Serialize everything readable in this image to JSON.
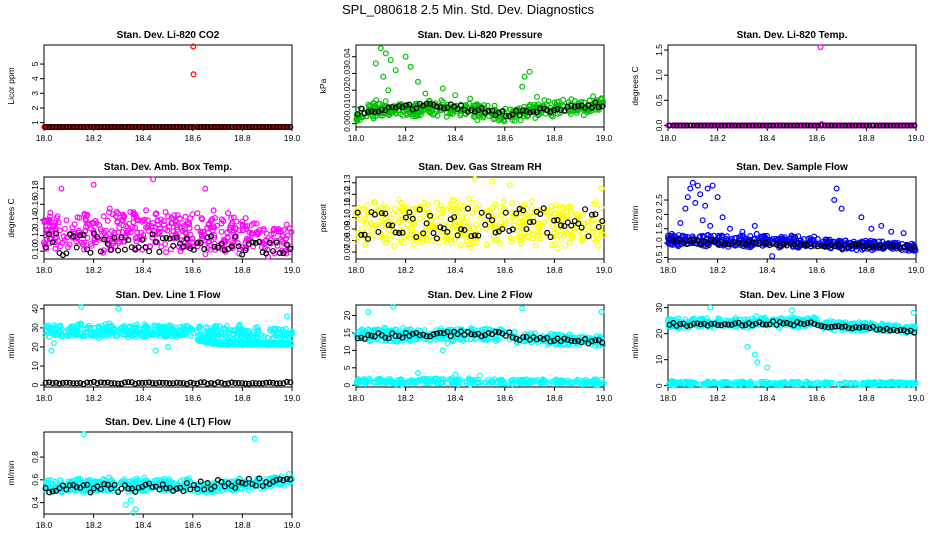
{
  "main_title": "SPL_080618  2.5 Min. Std. Dev. Diagnostics",
  "colors": {
    "co2": "#ff0000",
    "pressure": "#00c000",
    "temp": "#ff00ff",
    "amb": "#ff00ff",
    "rh": "#ffff00",
    "sample": "#0000ff",
    "line": "#00ffff",
    "overlay": "#000000"
  },
  "chart_data": [
    {
      "type": "scatter",
      "title": "Stan. Dev. Li-820 CO2",
      "xlabel": "",
      "ylabel": "Licor ppm",
      "xlim": [
        18.0,
        19.0
      ],
      "ylim": [
        0.7,
        6.3
      ],
      "xticks": [
        18.0,
        18.2,
        18.4,
        18.6,
        18.8,
        19.0
      ],
      "xtick_labels": [
        "18.0",
        "18.2",
        "18.4",
        "18.6",
        "18.8",
        "19.0"
      ],
      "yticks": [
        1,
        2,
        3,
        4,
        5
      ],
      "ytick_labels": [
        "1",
        "2",
        "3",
        "4",
        "5"
      ],
      "color": "#ff0000",
      "profile": [
        [
          18.0,
          0.35,
          0.5,
          0.03
        ],
        [
          18.6,
          0.36,
          0.5,
          0.03
        ],
        [
          19.0,
          0.36,
          0.5,
          0.03
        ]
      ],
      "gap": [
        18.605,
        18.618
      ],
      "overlay_profile": [
        [
          18.0,
          0.36,
          0.5,
          0.02
        ],
        [
          19.0,
          0.36,
          0.5,
          0.02
        ]
      ],
      "outliers": [
        [
          18.602,
          6.2
        ],
        [
          18.603,
          4.3
        ]
      ]
    },
    {
      "type": "scatter",
      "title": "Stan. Dev. Li-820 Pressure",
      "xlabel": "",
      "ylabel": "kPa",
      "xlim": [
        18.0,
        19.0
      ],
      "ylim": [
        -0.002,
        0.047
      ],
      "xticks": [
        18.0,
        18.2,
        18.4,
        18.6,
        18.8,
        19.0
      ],
      "xtick_labels": [
        "18.0",
        "18.2",
        "18.4",
        "18.6",
        "18.8",
        "19.0"
      ],
      "yticks": [
        0.0,
        0.01,
        0.02,
        0.03,
        0.04
      ],
      "ytick_labels": [
        "0.00",
        "0.01",
        "0.02",
        "0.03",
        "0.04"
      ],
      "color": "#00c000",
      "profile": [
        [
          18.0,
          0.004,
          0.004,
          0.005
        ],
        [
          18.05,
          0.008,
          0.004,
          0.006
        ],
        [
          18.3,
          0.009,
          0.004,
          0.006
        ],
        [
          18.55,
          0.007,
          0.004,
          0.006
        ],
        [
          18.6,
          0.004,
          0.004,
          0.006
        ],
        [
          18.7,
          0.008,
          0.004,
          0.006
        ],
        [
          19.0,
          0.011,
          0.004,
          0.006
        ]
      ],
      "gap": [
        18.605,
        18.618
      ],
      "overlay_profile": [
        [
          18.0,
          0.007,
          0.003,
          0.002
        ],
        [
          18.3,
          0.011,
          0.003,
          0.002
        ],
        [
          18.6,
          0.006,
          0.003,
          0.002
        ],
        [
          19.0,
          0.011,
          0.003,
          0.002
        ]
      ],
      "outliers": [
        [
          18.08,
          0.036
        ],
        [
          18.1,
          0.045
        ],
        [
          18.12,
          0.042
        ],
        [
          18.14,
          0.038
        ],
        [
          18.11,
          0.028
        ],
        [
          18.16,
          0.032
        ],
        [
          18.2,
          0.04
        ],
        [
          18.22,
          0.034
        ],
        [
          18.13,
          0.02
        ],
        [
          18.25,
          0.025
        ],
        [
          18.28,
          0.018
        ],
        [
          18.35,
          0.021
        ],
        [
          18.4,
          0.017
        ],
        [
          18.46,
          0.015
        ],
        [
          18.68,
          0.028
        ],
        [
          18.7,
          0.031
        ],
        [
          18.67,
          0.022
        ],
        [
          18.73,
          0.016
        ],
        [
          18.76,
          0.014
        ]
      ]
    },
    {
      "type": "scatter",
      "title": "Stan. Dev. Li-820 Temp.",
      "xlabel": "",
      "ylabel": "degrees C",
      "xlim": [
        18.0,
        19.0
      ],
      "ylim": [
        -0.03,
        1.6
      ],
      "xticks": [
        18.0,
        18.2,
        18.4,
        18.6,
        18.8,
        19.0
      ],
      "xtick_labels": [
        "18.0",
        "18.2",
        "18.4",
        "18.6",
        "18.8",
        "19.0"
      ],
      "yticks": [
        0.0,
        0.5,
        1.0,
        1.5
      ],
      "ytick_labels": [
        "0.0",
        "0.5",
        "1.0",
        "1.5"
      ],
      "color": "#ff00ff",
      "profile": [
        [
          18.0,
          0.0,
          0.0,
          0.0
        ],
        [
          19.0,
          0.0,
          0.0,
          0.0
        ]
      ],
      "gap": [
        18.605,
        18.618
      ],
      "overlay_profile": [
        [
          18.0,
          0.0,
          0.0,
          0.0
        ],
        [
          19.0,
          0.0,
          0.0,
          0.0
        ]
      ],
      "outliers": [
        [
          18.615,
          1.56
        ],
        [
          18.62,
          0.03
        ]
      ]
    },
    {
      "type": "scatter",
      "title": "Stan. Dev. Amb. Box Temp.",
      "xlabel": "",
      "ylabel": "degrees C",
      "xlim": [
        18.0,
        19.0
      ],
      "ylim": [
        0.09,
        0.195
      ],
      "xticks": [
        18.0,
        18.2,
        18.4,
        18.6,
        18.8,
        19.0
      ],
      "xtick_labels": [
        "18.0",
        "18.2",
        "18.4",
        "18.6",
        "18.8",
        "19.0"
      ],
      "yticks": [
        0.1,
        0.12,
        0.14,
        0.16,
        0.18
      ],
      "ytick_labels": [
        "0.10",
        "0.12",
        "0.14",
        "0.16",
        "0.18"
      ],
      "color": "#ff00ff",
      "profile": [
        [
          18.0,
          0.125,
          0.045,
          0.012
        ],
        [
          18.6,
          0.125,
          0.045,
          0.012
        ],
        [
          18.8,
          0.12,
          0.04,
          0.01
        ],
        [
          19.0,
          0.115,
          0.035,
          0.01
        ]
      ],
      "gap": [
        18.605,
        18.618
      ],
      "overlay_profile": [
        [
          18.0,
          0.11,
          0.03,
          0.005
        ],
        [
          19.0,
          0.108,
          0.02,
          0.005
        ]
      ],
      "outliers": [
        [
          18.2,
          0.185
        ],
        [
          18.44,
          0.192
        ],
        [
          18.65,
          0.18
        ],
        [
          18.07,
          0.18
        ]
      ]
    },
    {
      "type": "scatter",
      "title": "Stan. Dev. Gas Stream RH",
      "xlabel": "",
      "ylabel": "percent",
      "xlim": [
        18.0,
        19.0
      ],
      "ylim": [
        0.064,
        0.135
      ],
      "xticks": [
        18.0,
        18.2,
        18.4,
        18.6,
        18.8,
        19.0
      ],
      "xtick_labels": [
        "18.0",
        "18.2",
        "18.4",
        "18.6",
        "18.8",
        "19.0"
      ],
      "yticks": [
        0.07,
        0.08,
        0.09,
        0.1,
        0.11,
        0.12,
        0.13
      ],
      "ytick_labels": [
        "0.07",
        "0.08",
        "0.09",
        "0.10",
        "0.11",
        "0.12",
        "0.13"
      ],
      "color": "#ffff00",
      "profile": [
        [
          18.0,
          0.095,
          0.035,
          0.008
        ],
        [
          19.0,
          0.095,
          0.035,
          0.008
        ]
      ],
      "gap": [
        18.605,
        18.618
      ],
      "overlay_profile": [
        [
          18.0,
          0.095,
          0.025,
          0.006
        ],
        [
          19.0,
          0.095,
          0.025,
          0.006
        ]
      ],
      "outliers": [
        [
          18.48,
          0.133
        ],
        [
          18.55,
          0.131
        ],
        [
          18.62,
          0.128
        ],
        [
          18.99,
          0.125
        ]
      ]
    },
    {
      "type": "scatter",
      "title": "Stan. Dev. Sample Flow",
      "xlabel": "",
      "ylabel": "ml/min",
      "xlim": [
        18.0,
        19.0
      ],
      "ylim": [
        0.45,
        3.3
      ],
      "xticks": [
        18.0,
        18.2,
        18.4,
        18.6,
        18.8,
        19.0
      ],
      "xtick_labels": [
        "18.0",
        "18.2",
        "18.4",
        "18.6",
        "18.8",
        "19.0"
      ],
      "yticks": [
        0.5,
        1.0,
        1.5,
        2.0,
        2.5
      ],
      "ytick_labels": [
        "0.5",
        "1.0",
        "1.5",
        "2.0",
        "2.5"
      ],
      "color": "#0000ff",
      "profile": [
        [
          18.0,
          1.1,
          0.35,
          0.1
        ],
        [
          18.6,
          1.05,
          0.35,
          0.1
        ],
        [
          18.62,
          1.0,
          0.3,
          0.1
        ],
        [
          19.0,
          0.85,
          0.25,
          0.08
        ]
      ],
      "gap": [
        18.605,
        18.618
      ],
      "overlay_profile": [
        [
          18.0,
          1.05,
          0.15,
          0.05
        ],
        [
          19.0,
          0.85,
          0.12,
          0.05
        ]
      ],
      "outliers": [
        [
          18.07,
          2.2
        ],
        [
          18.08,
          2.6
        ],
        [
          18.09,
          2.9
        ],
        [
          18.1,
          3.1
        ],
        [
          18.12,
          3.0
        ],
        [
          18.13,
          2.7
        ],
        [
          18.15,
          2.3
        ],
        [
          18.16,
          2.9
        ],
        [
          18.18,
          3.0
        ],
        [
          18.2,
          2.6
        ],
        [
          18.11,
          2.4
        ],
        [
          18.14,
          1.8
        ],
        [
          18.17,
          1.6
        ],
        [
          18.22,
          1.9
        ],
        [
          18.05,
          1.7
        ],
        [
          18.25,
          1.5
        ],
        [
          18.3,
          1.4
        ],
        [
          18.35,
          1.6
        ],
        [
          18.67,
          2.5
        ],
        [
          18.68,
          2.9
        ],
        [
          18.7,
          2.2
        ],
        [
          18.78,
          1.9
        ],
        [
          18.82,
          1.5
        ],
        [
          18.86,
          1.6
        ],
        [
          18.9,
          1.4
        ],
        [
          18.95,
          1.35
        ],
        [
          18.42,
          0.55
        ]
      ]
    },
    {
      "type": "scatter",
      "title": "Stan. Dev. Line 1 Flow",
      "xlabel": "",
      "ylabel": "ml/min",
      "xlim": [
        18.0,
        19.0
      ],
      "ylim": [
        -1,
        42
      ],
      "xticks": [
        18.0,
        18.2,
        18.4,
        18.6,
        18.8,
        19.0
      ],
      "xtick_labels": [
        "18.0",
        "18.2",
        "18.4",
        "18.6",
        "18.8",
        "19.0"
      ],
      "yticks": [
        0,
        10,
        20,
        30,
        40
      ],
      "ytick_labels": [
        "0",
        "10",
        "20",
        "30",
        "40"
      ],
      "color": "#00ffff",
      "profile": [
        [
          18.0,
          28.5,
          6.0,
          1.5
        ],
        [
          18.6,
          28.5,
          6.0,
          1.5
        ],
        [
          18.62,
          28,
          8,
          1.5
        ],
        [
          19.0,
          27,
          6,
          1.5
        ]
      ],
      "gap": [
        18.605,
        18.618
      ],
      "extra_band": [
        [
          18.62,
          24,
          0,
          1.2
        ],
        [
          18.7,
          22,
          0,
          1.2
        ],
        [
          19.0,
          21.5,
          0,
          1.2
        ]
      ],
      "overlay_profile": [
        [
          18.0,
          1.2,
          0.8,
          0.4
        ],
        [
          19.0,
          1.0,
          0.8,
          0.4
        ]
      ],
      "outliers": [
        [
          18.03,
          18
        ],
        [
          18.04,
          22
        ],
        [
          18.15,
          41
        ],
        [
          18.45,
          18
        ],
        [
          18.5,
          20
        ],
        [
          18.98,
          36
        ],
        [
          18.3,
          40
        ]
      ]
    },
    {
      "type": "scatter",
      "title": "Stan. Dev. Line 2 Flow",
      "xlabel": "",
      "ylabel": "ml/min",
      "xlim": [
        18.0,
        19.0
      ],
      "ylim": [
        -0.5,
        23
      ],
      "xticks": [
        18.0,
        18.2,
        18.4,
        18.6,
        18.8,
        19.0
      ],
      "xtick_labels": [
        "18.0",
        "18.2",
        "18.4",
        "18.6",
        "18.8",
        "19.0"
      ],
      "yticks": [
        0,
        5,
        10,
        15,
        20
      ],
      "ytick_labels": [
        "0",
        "5",
        "10",
        "15",
        "20"
      ],
      "color": "#00ffff",
      "profile": [
        [
          18.0,
          14.5,
          3.5,
          0.8
        ],
        [
          18.6,
          14.5,
          3.5,
          0.8
        ],
        [
          18.65,
          13.5,
          3.0,
          0.8
        ],
        [
          19.0,
          12.5,
          2.5,
          0.8
        ]
      ],
      "gap": [
        18.605,
        18.618
      ],
      "extra_band": [
        [
          18.0,
          1.2,
          1.5,
          0.5
        ],
        [
          19.0,
          1.0,
          1.2,
          0.5
        ]
      ],
      "overlay_profile": [
        [
          18.0,
          14,
          1.5,
          0.5
        ],
        [
          18.6,
          15,
          1.5,
          0.5
        ],
        [
          18.65,
          13.5,
          1.2,
          0.5
        ],
        [
          19.0,
          12.5,
          1.0,
          0.5
        ]
      ],
      "outliers": [
        [
          18.05,
          21
        ],
        [
          18.15,
          22.5
        ],
        [
          18.35,
          10
        ],
        [
          18.37,
          12
        ],
        [
          18.4,
          3
        ],
        [
          18.67,
          22
        ],
        [
          18.99,
          21
        ],
        [
          18.25,
          3.5
        ],
        [
          18.5,
          2.8
        ]
      ]
    },
    {
      "type": "scatter",
      "title": "Stan. Dev. Line 3 Flow",
      "xlabel": "",
      "ylabel": "ml/min",
      "xlim": [
        18.0,
        19.0
      ],
      "ylim": [
        -0.5,
        31
      ],
      "xticks": [
        18.0,
        18.2,
        18.4,
        18.6,
        18.8,
        19.0
      ],
      "xtick_labels": [
        "18.0",
        "18.2",
        "18.4",
        "18.6",
        "18.8",
        "19.0"
      ],
      "yticks": [
        0,
        10,
        20,
        30
      ],
      "ytick_labels": [
        "0",
        "10",
        "20",
        "30"
      ],
      "color": "#00ffff",
      "profile": [
        [
          18.0,
          24,
          3.5,
          0.8
        ],
        [
          18.6,
          24.5,
          3.5,
          0.8
        ],
        [
          18.65,
          23.5,
          3.0,
          0.8
        ],
        [
          19.0,
          21.5,
          2.5,
          0.8
        ]
      ],
      "gap": [
        18.605,
        18.618
      ],
      "extra_band": [
        [
          18.0,
          1.0,
          1.2,
          0.4
        ],
        [
          19.0,
          0.8,
          1.0,
          0.4
        ]
      ],
      "overlay_profile": [
        [
          18.0,
          23.5,
          1.5,
          0.5
        ],
        [
          18.6,
          24,
          1.5,
          0.5
        ],
        [
          18.65,
          23,
          1.2,
          0.5
        ],
        [
          19.0,
          21,
          1.0,
          0.5
        ]
      ],
      "outliers": [
        [
          18.17,
          30
        ],
        [
          18.35,
          12
        ],
        [
          18.36,
          9
        ],
        [
          18.4,
          7
        ],
        [
          18.5,
          29
        ],
        [
          18.99,
          28
        ],
        [
          18.32,
          15
        ]
      ]
    },
    {
      "type": "scatter",
      "title": "Stan. Dev. Line 4 (LT) Flow",
      "xlabel": "",
      "ylabel": "ml/min",
      "xlim": [
        18.0,
        19.0
      ],
      "ylim": [
        0.3,
        1.02
      ],
      "xticks": [
        18.0,
        18.2,
        18.4,
        18.6,
        18.8,
        19.0
      ],
      "xtick_labels": [
        "18.0",
        "18.2",
        "18.4",
        "18.6",
        "18.8",
        "19.0"
      ],
      "yticks": [
        0.4,
        0.6,
        0.8
      ],
      "ytick_labels": [
        "0.4",
        "0.6",
        "0.8"
      ],
      "color": "#00ffff",
      "profile": [
        [
          18.0,
          0.55,
          0.1,
          0.03
        ],
        [
          18.6,
          0.56,
          0.1,
          0.03
        ],
        [
          18.62,
          0.52,
          0.1,
          0.03
        ],
        [
          19.0,
          0.6,
          0.08,
          0.03
        ]
      ],
      "gap": [
        18.605,
        18.618
      ],
      "overlay_profile": [
        [
          18.0,
          0.52,
          0.08,
          0.02
        ],
        [
          18.6,
          0.55,
          0.08,
          0.02
        ],
        [
          19.0,
          0.6,
          0.06,
          0.02
        ]
      ],
      "outliers": [
        [
          18.16,
          1.0
        ],
        [
          18.36,
          0.31
        ],
        [
          18.37,
          0.34
        ],
        [
          18.85,
          0.96
        ],
        [
          18.35,
          0.42
        ],
        [
          18.33,
          0.38
        ]
      ]
    }
  ]
}
